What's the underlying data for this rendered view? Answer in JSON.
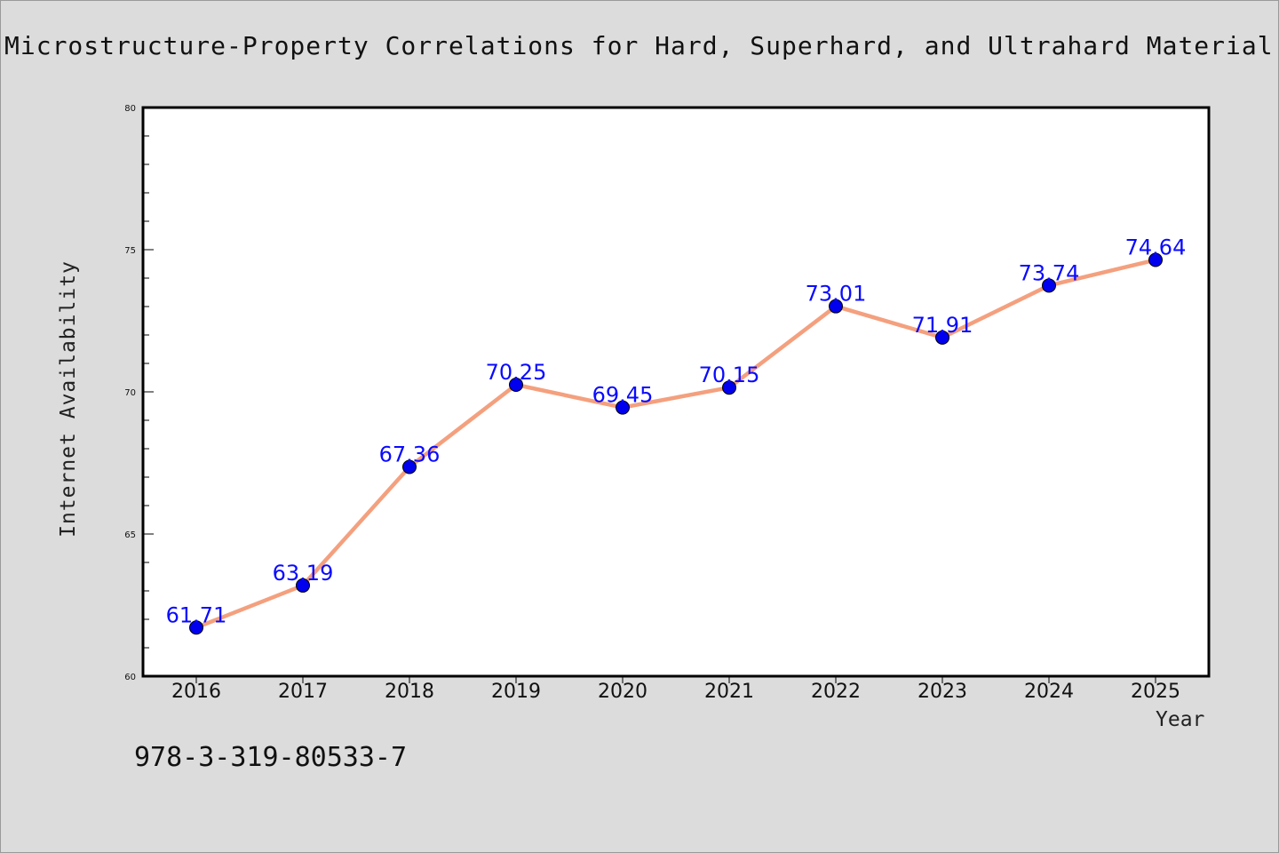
{
  "title": "Microstructure-Property Correlations for Hard, Superhard, and Ultrahard Material",
  "footer_text": "978-3-319-80533-7",
  "chart_data": {
    "type": "line",
    "xlabel": "Year",
    "ylabel": "Internet Availability",
    "categories": [
      "2016",
      "2017",
      "2018",
      "2019",
      "2020",
      "2021",
      "2022",
      "2023",
      "2024",
      "2025"
    ],
    "series": [
      {
        "values": [
          61.71,
          63.19,
          67.36,
          70.25,
          69.45,
          70.15,
          73.01,
          71.91,
          73.74,
          74.64
        ],
        "line_color": "#f4a07e",
        "marker_color": "#0000ee"
      }
    ],
    "value_labels": [
      "61.71",
      "63.19",
      "67.36",
      "70.25",
      "69.45",
      "70.15",
      "73.01",
      "71.91",
      "73.74",
      "74.64"
    ],
    "ylim": [
      60,
      80
    ],
    "yticks": [
      "60",
      "65",
      "70",
      "75",
      "80"
    ],
    "grid": false,
    "legend": "none",
    "background": "#ffffff",
    "label_color": "#0a0aff"
  }
}
